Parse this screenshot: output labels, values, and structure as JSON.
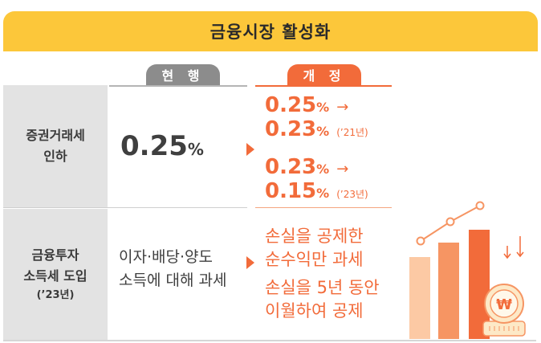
{
  "title": "금융시장 활성화",
  "columns": {
    "current": "현 행",
    "revised": "개 정"
  },
  "rows": [
    {
      "category_lines": [
        "증권거래세",
        "인하"
      ],
      "current_value": "0.25",
      "current_unit": "%",
      "revised": [
        {
          "value": "0.25",
          "unit": "%",
          "arrow": "→"
        },
        {
          "value": "0.23",
          "unit": "%",
          "year": "(’21년)"
        },
        {
          "value": "0.23",
          "unit": "%",
          "arrow": "→"
        },
        {
          "value": "0.15",
          "unit": "%",
          "year": "(’23년)"
        }
      ]
    },
    {
      "category_lines": [
        "금융투자",
        "소득세 도입"
      ],
      "category_year": "(’23년)",
      "current_lines": [
        "이자·배당·양도",
        "소득에 대해 과세"
      ],
      "revised_lines": [
        "손실을 공제한",
        "순수익만 과세",
        "손실을 5년 동안",
        "이월하여 공제"
      ]
    }
  ],
  "illustration": {
    "coin_symbol": "₩",
    "icon": "rising-bar-chart-with-coin"
  },
  "colors": {
    "banner": "#fcc73a",
    "accent": "#f26b3a",
    "gray": "#8c8c8c"
  }
}
